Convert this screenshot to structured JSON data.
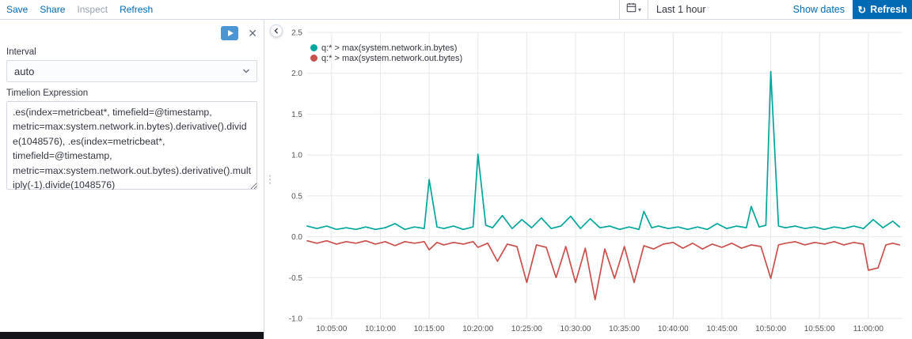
{
  "topbar": {
    "links": [
      {
        "label": "Save",
        "disabled": false
      },
      {
        "label": "Share",
        "disabled": false
      },
      {
        "label": "Inspect",
        "disabled": true
      },
      {
        "label": "Refresh",
        "disabled": false
      }
    ],
    "datepicker": {
      "value": "Last 1 hour",
      "show_dates": "Show dates"
    },
    "refresh_button": "Refresh"
  },
  "sidebar": {
    "interval_label": "Interval",
    "interval_value": "auto",
    "expression_label": "Timelion Expression",
    "expression_value": ".es(index=metricbeat*, timefield=@timestamp, metric=max:system.network.in.bytes).derivative().divide(1048576), .es(index=metricbeat*, timefield=@timestamp, metric=max:system.network.out.bytes).derivative().multiply(-1).divide(1048576)"
  },
  "icons": {
    "refresh": "↻",
    "dropdown_chevron": "▾",
    "ellipsis": "⋮",
    "close": "✕"
  },
  "colors": {
    "accent": "#006BB4",
    "border": "#d3dae6",
    "grid": "#e8e8e8",
    "tick_text": "#545454",
    "series_in": "#00A69B",
    "series_out": "#C9504C"
  },
  "chart_data": {
    "type": "line",
    "title": "",
    "xlabel": "",
    "ylabel": "",
    "grid": true,
    "legend_position": "top-left",
    "xlim": [
      602.5,
      663.5
    ],
    "ylim": [
      -1.0,
      2.5
    ],
    "x_unit": "minutes-since-midnight",
    "y_unit": "MB/s (derivative of bytes / 1048576)",
    "xticks": [
      {
        "t": 605,
        "label": "10:05:00"
      },
      {
        "t": 610,
        "label": "10:10:00"
      },
      {
        "t": 615,
        "label": "10:15:00"
      },
      {
        "t": 620,
        "label": "10:20:00"
      },
      {
        "t": 625,
        "label": "10:25:00"
      },
      {
        "t": 630,
        "label": "10:30:00"
      },
      {
        "t": 635,
        "label": "10:35:00"
      },
      {
        "t": 640,
        "label": "10:40:00"
      },
      {
        "t": 645,
        "label": "10:45:00"
      },
      {
        "t": 650,
        "label": "10:50:00"
      },
      {
        "t": 655,
        "label": "10:55:00"
      },
      {
        "t": 660,
        "label": "11:00:00"
      }
    ],
    "yticks": [
      {
        "v": 2.5,
        "label": "2.5"
      },
      {
        "v": 2.0,
        "label": "2.0"
      },
      {
        "v": 1.5,
        "label": "1.5"
      },
      {
        "v": 1.0,
        "label": "1.0"
      },
      {
        "v": 0.5,
        "label": "0.5"
      },
      {
        "v": 0.0,
        "label": "0.0"
      },
      {
        "v": -0.5,
        "label": "-0.5"
      },
      {
        "v": -1.0,
        "label": "-1.0"
      }
    ],
    "series": [
      {
        "name": "q:* > max(system.network.in.bytes)",
        "color": "#00A69B",
        "points": [
          [
            602.5,
            0.13
          ],
          [
            603.5,
            0.1
          ],
          [
            604.5,
            0.13
          ],
          [
            605.5,
            0.09
          ],
          [
            606.5,
            0.11
          ],
          [
            607.5,
            0.09
          ],
          [
            608.5,
            0.12
          ],
          [
            609.5,
            0.09
          ],
          [
            610.5,
            0.11
          ],
          [
            611.5,
            0.16
          ],
          [
            612.5,
            0.09
          ],
          [
            613.5,
            0.12
          ],
          [
            614.5,
            0.1
          ],
          [
            615,
            0.7
          ],
          [
            615.8,
            0.12
          ],
          [
            616.5,
            0.1
          ],
          [
            617.5,
            0.13
          ],
          [
            618.5,
            0.09
          ],
          [
            619.5,
            0.12
          ],
          [
            620,
            1.01
          ],
          [
            620.8,
            0.14
          ],
          [
            621.5,
            0.11
          ],
          [
            622.5,
            0.26
          ],
          [
            623.5,
            0.1
          ],
          [
            624.5,
            0.21
          ],
          [
            625.5,
            0.11
          ],
          [
            626.5,
            0.23
          ],
          [
            627.5,
            0.1
          ],
          [
            628.5,
            0.13
          ],
          [
            629.5,
            0.25
          ],
          [
            630.5,
            0.1
          ],
          [
            631.5,
            0.22
          ],
          [
            632.5,
            0.11
          ],
          [
            633.5,
            0.13
          ],
          [
            634.5,
            0.09
          ],
          [
            635.5,
            0.12
          ],
          [
            636.5,
            0.09
          ],
          [
            637,
            0.31
          ],
          [
            637.8,
            0.11
          ],
          [
            638.5,
            0.13
          ],
          [
            639.5,
            0.1
          ],
          [
            640.5,
            0.12
          ],
          [
            641.5,
            0.09
          ],
          [
            642.5,
            0.12
          ],
          [
            643.5,
            0.09
          ],
          [
            644.5,
            0.16
          ],
          [
            645.5,
            0.1
          ],
          [
            646.5,
            0.13
          ],
          [
            647.5,
            0.11
          ],
          [
            648,
            0.37
          ],
          [
            648.8,
            0.12
          ],
          [
            649.5,
            0.14
          ],
          [
            650,
            2.02
          ],
          [
            650.8,
            0.13
          ],
          [
            651.5,
            0.11
          ],
          [
            652.5,
            0.13
          ],
          [
            653.5,
            0.1
          ],
          [
            654.5,
            0.12
          ],
          [
            655.5,
            0.09
          ],
          [
            656.5,
            0.12
          ],
          [
            657.5,
            0.1
          ],
          [
            658.5,
            0.13
          ],
          [
            659.5,
            0.1
          ],
          [
            660.5,
            0.21
          ],
          [
            661.5,
            0.11
          ],
          [
            662.5,
            0.19
          ],
          [
            663.2,
            0.12
          ]
        ]
      },
      {
        "name": "q:* > max(system.network.out.bytes)",
        "color": "#C9504C",
        "points": [
          [
            602.5,
            -0.05
          ],
          [
            603.5,
            -0.08
          ],
          [
            604.5,
            -0.05
          ],
          [
            605.5,
            -0.09
          ],
          [
            606.5,
            -0.06
          ],
          [
            607.5,
            -0.08
          ],
          [
            608.5,
            -0.05
          ],
          [
            609.5,
            -0.09
          ],
          [
            610.5,
            -0.06
          ],
          [
            611.5,
            -0.11
          ],
          [
            612.5,
            -0.06
          ],
          [
            613.5,
            -0.08
          ],
          [
            614.5,
            -0.06
          ],
          [
            615,
            -0.16
          ],
          [
            615.8,
            -0.07
          ],
          [
            616.5,
            -0.1
          ],
          [
            617.5,
            -0.07
          ],
          [
            618.5,
            -0.09
          ],
          [
            619.5,
            -0.06
          ],
          [
            620,
            -0.13
          ],
          [
            621,
            -0.08
          ],
          [
            622,
            -0.3
          ],
          [
            623,
            -0.09
          ],
          [
            624,
            -0.12
          ],
          [
            625,
            -0.56
          ],
          [
            626,
            -0.1
          ],
          [
            627,
            -0.13
          ],
          [
            628,
            -0.5
          ],
          [
            629,
            -0.12
          ],
          [
            630,
            -0.56
          ],
          [
            631,
            -0.14
          ],
          [
            632,
            -0.77
          ],
          [
            633,
            -0.15
          ],
          [
            634,
            -0.51
          ],
          [
            635,
            -0.12
          ],
          [
            636,
            -0.56
          ],
          [
            637,
            -0.11
          ],
          [
            638,
            -0.15
          ],
          [
            639,
            -0.09
          ],
          [
            640,
            -0.07
          ],
          [
            641,
            -0.14
          ],
          [
            642,
            -0.08
          ],
          [
            643,
            -0.15
          ],
          [
            644,
            -0.09
          ],
          [
            645,
            -0.13
          ],
          [
            646,
            -0.08
          ],
          [
            647,
            -0.14
          ],
          [
            648,
            -0.1
          ],
          [
            649,
            -0.12
          ],
          [
            650,
            -0.51
          ],
          [
            650.8,
            -0.1
          ],
          [
            651.5,
            -0.08
          ],
          [
            652.5,
            -0.06
          ],
          [
            653.5,
            -0.1
          ],
          [
            654.5,
            -0.07
          ],
          [
            655.5,
            -0.09
          ],
          [
            656.5,
            -0.06
          ],
          [
            657.5,
            -0.1
          ],
          [
            658.5,
            -0.07
          ],
          [
            659.5,
            -0.09
          ],
          [
            660,
            -0.41
          ],
          [
            661,
            -0.38
          ],
          [
            661.8,
            -0.1
          ],
          [
            662.5,
            -0.08
          ],
          [
            663.2,
            -0.1
          ]
        ]
      }
    ]
  }
}
